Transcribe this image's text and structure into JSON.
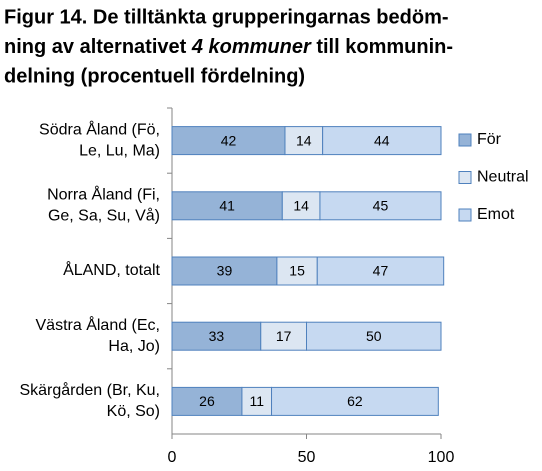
{
  "chart_data": {
    "type": "stacked-barh",
    "title": [
      [
        "Figur 14. De tilltänkta grupperingarnas bedöm-"
      ],
      [
        "ning av alternativet ",
        "4 kommuner",
        " till kommunin-"
      ],
      [
        "delning (procentuell fördelning)"
      ]
    ],
    "categories": [
      [
        "Södra Åland (Fö,",
        "Le, Lu, Ma)"
      ],
      [
        "Norra Åland  (Fi,",
        "Ge, Sa, Su, Vå)"
      ],
      [
        "ÅLAND, totalt"
      ],
      [
        "Västra Åland (Ec,",
        "Ha, Jo)"
      ],
      [
        "Skärgården (Br, Ku,",
        "Kö, So)"
      ]
    ],
    "series": [
      {
        "name": "För",
        "color": "#95b3d7",
        "values": [
          42,
          41,
          39,
          33,
          26
        ]
      },
      {
        "name": "Neutral",
        "color": "#dce6f2",
        "values": [
          14,
          14,
          15,
          17,
          11
        ]
      },
      {
        "name": "Emot",
        "color": "#c6d9f1",
        "values": [
          44,
          45,
          47,
          50,
          62
        ]
      }
    ],
    "xlim": [
      0,
      100
    ],
    "xticks": [
      0,
      50,
      100
    ],
    "legend": "right"
  }
}
